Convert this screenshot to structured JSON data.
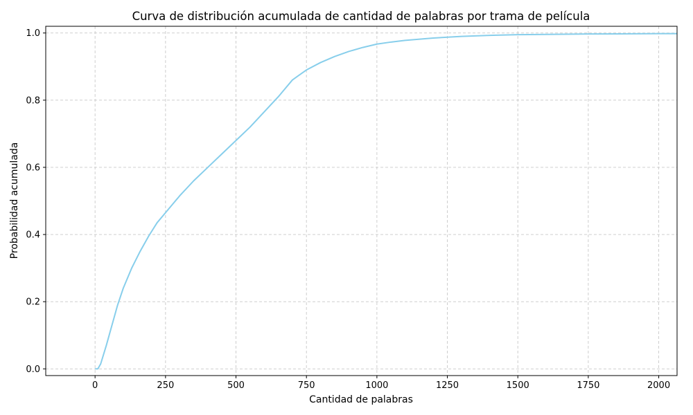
{
  "chart_data": {
    "type": "line",
    "title": "Curva de distribución acumulada de cantidad de palabras por trama de película",
    "xlabel": "Cantidad de palabras",
    "ylabel": "Probabilidad acumulada",
    "xlim": [
      -175,
      2065
    ],
    "ylim": [
      -0.02,
      1.02
    ],
    "xticks": [
      0,
      250,
      500,
      750,
      1000,
      1250,
      1500,
      1750,
      2000
    ],
    "yticks": [
      0.0,
      0.2,
      0.4,
      0.6,
      0.8,
      1.0
    ],
    "xtick_labels": [
      "0",
      "250",
      "500",
      "750",
      "1000",
      "1250",
      "1500",
      "1750",
      "2000"
    ],
    "ytick_labels": [
      "0.0",
      "0.2",
      "0.4",
      "0.6",
      "0.8",
      "1.0"
    ],
    "grid": true,
    "line_color": "#87CEEB",
    "series": [
      {
        "x": [
          0,
          10,
          20,
          40,
          60,
          80,
          100,
          130,
          160,
          190,
          220,
          250,
          300,
          350,
          400,
          450,
          500,
          550,
          600,
          650,
          670,
          690,
          700,
          720,
          750,
          800,
          850,
          900,
          950,
          1000,
          1050,
          1100,
          1200,
          1300,
          1400,
          1500,
          1750,
          2000,
          2065
        ],
        "y": [
          0.0,
          0.0,
          0.015,
          0.07,
          0.13,
          0.19,
          0.24,
          0.3,
          0.35,
          0.395,
          0.435,
          0.465,
          0.515,
          0.56,
          0.6,
          0.64,
          0.68,
          0.72,
          0.765,
          0.81,
          0.83,
          0.85,
          0.86,
          0.872,
          0.89,
          0.912,
          0.93,
          0.945,
          0.957,
          0.967,
          0.973,
          0.978,
          0.985,
          0.99,
          0.993,
          0.995,
          0.997,
          0.998,
          0.998
        ]
      }
    ]
  }
}
